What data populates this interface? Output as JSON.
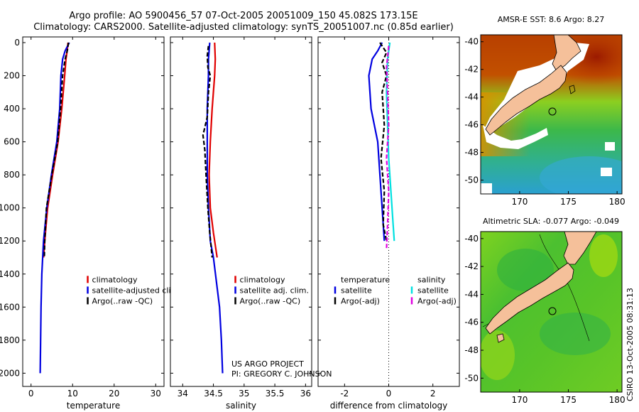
{
  "header": {
    "line1": "Argo profile: AO 5900456_57 07-Oct-2005 20051009_150 45.082S 173.15E",
    "line2": "Climatology: CARS2000. Satellite-adjusted climatology: synTS_20051007.nc (0.85d earlier)"
  },
  "chart_data": [
    {
      "id": "temperature",
      "type": "line",
      "xlabel": "temperature",
      "xlim": [
        -2,
        32
      ],
      "xticks": [
        0,
        10,
        20,
        30
      ],
      "ylim": [
        0,
        2080
      ],
      "yticks": [
        0,
        200,
        400,
        600,
        800,
        1000,
        1200,
        1400,
        1600,
        1800,
        2000
      ],
      "ylabel_ticks_shown": true,
      "legend": {
        "location": "lower-right",
        "entries": [
          {
            "label": "climatology",
            "color": "#e00000"
          },
          {
            "label": "satellite-adjusted climatology",
            "color": "#0000e0"
          },
          {
            "label": "Argo(..raw -QC)",
            "color": "#000000"
          }
        ]
      },
      "series": [
        {
          "name": "climatology",
          "color": "#e00000",
          "dash": "none",
          "points": [
            [
              8.9,
              0
            ],
            [
              8.7,
              50
            ],
            [
              8.4,
              100
            ],
            [
              8.1,
              200
            ],
            [
              7.4,
              400
            ],
            [
              6.5,
              600
            ],
            [
              5.2,
              800
            ],
            [
              4.0,
              1000
            ],
            [
              3.3,
              1200
            ],
            [
              3.0,
              1300
            ]
          ]
        },
        {
          "name": "satellite-adjusted climatology",
          "color": "#0000e0",
          "dash": "none",
          "points": [
            [
              9.2,
              0
            ],
            [
              8.2,
              50
            ],
            [
              7.6,
              100
            ],
            [
              7.2,
              200
            ],
            [
              6.9,
              400
            ],
            [
              6.2,
              600
            ],
            [
              4.9,
              800
            ],
            [
              3.8,
              1000
            ],
            [
              3.0,
              1200
            ],
            [
              2.6,
              1400
            ],
            [
              2.4,
              1600
            ],
            [
              2.3,
              1800
            ],
            [
              2.2,
              2000
            ]
          ]
        },
        {
          "name": "Argo(..raw -QC)",
          "color": "#000000",
          "dash": "6,3",
          "points": [
            [
              9.0,
              0
            ],
            [
              8.8,
              40
            ],
            [
              8.2,
              100
            ],
            [
              7.6,
              200
            ],
            [
              7.1,
              400
            ],
            [
              6.4,
              600
            ],
            [
              5.0,
              800
            ],
            [
              3.7,
              1000
            ],
            [
              3.3,
              1200
            ],
            [
              3.2,
              1300
            ]
          ]
        }
      ]
    },
    {
      "id": "salinity",
      "type": "line",
      "xlabel": "salinity",
      "xlim": [
        33.8,
        36.1
      ],
      "xticks": [
        34,
        34.5,
        35,
        35.5,
        36
      ],
      "ylim": [
        0,
        2080
      ],
      "yticks": [
        0,
        200,
        400,
        600,
        800,
        1000,
        1200,
        1400,
        1600,
        1800,
        2000
      ],
      "ylabel_ticks_shown": false,
      "legend": {
        "location": "lower-right",
        "entries": [
          {
            "label": "climatology",
            "color": "#e00000"
          },
          {
            "label": "satellite adj. clim.",
            "color": "#0000e0"
          },
          {
            "label": "Argo(..raw -QC)",
            "color": "#000000"
          }
        ]
      },
      "series": [
        {
          "name": "climatology",
          "color": "#e00000",
          "dash": "none",
          "points": [
            [
              34.52,
              0
            ],
            [
              34.53,
              100
            ],
            [
              34.52,
              200
            ],
            [
              34.48,
              400
            ],
            [
              34.45,
              600
            ],
            [
              34.43,
              800
            ],
            [
              34.45,
              1000
            ],
            [
              34.5,
              1150
            ],
            [
              34.56,
              1300
            ]
          ]
        },
        {
          "name": "satellite adj. clim.",
          "color": "#0000e0",
          "dash": "none",
          "points": [
            [
              34.44,
              0
            ],
            [
              34.42,
              100
            ],
            [
              34.42,
              200
            ],
            [
              34.4,
              400
            ],
            [
              34.4,
              600
            ],
            [
              34.4,
              800
            ],
            [
              34.42,
              1000
            ],
            [
              34.45,
              1200
            ],
            [
              34.5,
              1300
            ],
            [
              34.55,
              1450
            ],
            [
              34.6,
              1600
            ],
            [
              34.63,
              1800
            ],
            [
              34.65,
              2000
            ]
          ]
        },
        {
          "name": "Argo(..raw -QC)",
          "color": "#000000",
          "dash": "6,3",
          "points": [
            [
              34.42,
              20
            ],
            [
              34.4,
              80
            ],
            [
              34.41,
              150
            ],
            [
              34.45,
              200
            ],
            [
              34.42,
              300
            ],
            [
              34.4,
              450
            ],
            [
              34.33,
              560
            ],
            [
              34.36,
              650
            ],
            [
              34.38,
              800
            ],
            [
              34.41,
              1000
            ],
            [
              34.44,
              1150
            ],
            [
              34.48,
              1300
            ]
          ]
        }
      ]
    },
    {
      "id": "difference",
      "type": "line",
      "xlabel": "difference from climatology",
      "xlim": [
        -3.2,
        3.2
      ],
      "xticks": [
        -2,
        0,
        2
      ],
      "ylim": [
        0,
        2080
      ],
      "yticks": [
        0,
        200,
        400,
        600,
        800,
        1000,
        1200,
        1400,
        1600,
        1800,
        2000
      ],
      "ylabel_ticks_shown": false,
      "zero_line": true,
      "legend": {
        "location": "lower-center",
        "columns": [
          {
            "heading": "temperature",
            "entries": [
              {
                "label": "satellite",
                "color": "#0000e0"
              },
              {
                "label": "Argo(-adj)",
                "color": "#000000"
              }
            ]
          },
          {
            "heading": "salinity",
            "entries": [
              {
                "label": "satellite",
                "color": "#00e0e0"
              },
              {
                "label": "Argo(-adj)",
                "color": "#e000e0"
              }
            ]
          }
        ]
      },
      "series": [
        {
          "name": "temperature satellite",
          "color": "#0000e0",
          "dash": "none",
          "points": [
            [
              -0.3,
              0
            ],
            [
              -0.5,
              50
            ],
            [
              -0.75,
              100
            ],
            [
              -0.9,
              200
            ],
            [
              -0.8,
              400
            ],
            [
              -0.5,
              600
            ],
            [
              -0.4,
              800
            ],
            [
              -0.3,
              1000
            ],
            [
              -0.2,
              1200
            ]
          ]
        },
        {
          "name": "temperature Argo(-adj)",
          "color": "#000000",
          "dash": "6,3",
          "points": [
            [
              -0.4,
              0
            ],
            [
              -0.1,
              60
            ],
            [
              -0.3,
              120
            ],
            [
              -0.1,
              200
            ],
            [
              -0.3,
              300
            ],
            [
              -0.2,
              500
            ],
            [
              -0.35,
              700
            ],
            [
              -0.2,
              900
            ],
            [
              -0.25,
              1100
            ],
            [
              -0.1,
              1200
            ]
          ]
        },
        {
          "name": "salinity satellite",
          "color": "#00e0e0",
          "dash": "none",
          "points": [
            [
              0.05,
              0
            ],
            [
              -0.05,
              100
            ],
            [
              -0.1,
              300
            ],
            [
              -0.05,
              500
            ],
            [
              0.0,
              700
            ],
            [
              0.1,
              900
            ],
            [
              0.2,
              1100
            ],
            [
              0.25,
              1200
            ]
          ]
        },
        {
          "name": "salinity Argo(-adj)",
          "color": "#e000e0",
          "dash": "6,3",
          "points": [
            [
              0.0,
              20
            ],
            [
              -0.1,
              150
            ],
            [
              -0.05,
              300
            ],
            [
              0.0,
              500
            ],
            [
              -0.1,
              700
            ],
            [
              0.0,
              900
            ],
            [
              -0.05,
              1100
            ],
            [
              -0.1,
              1250
            ]
          ]
        }
      ]
    },
    {
      "id": "sst-map",
      "type": "heatmap",
      "title": "AMSR-E SST: 8.6 Argo: 8.27",
      "xlim": [
        166,
        180.5
      ],
      "ylim": [
        -51,
        -39.5
      ],
      "xticks": [
        170,
        175,
        180
      ],
      "yticks": [
        -40,
        -42,
        -44,
        -46,
        -48,
        -50
      ],
      "colormap": "jet",
      "argo_position": {
        "lon": 173.15,
        "lat": -45.082
      }
    },
    {
      "id": "sla-map",
      "type": "heatmap",
      "title": "Altimetric SLA: -0.077 Argo: -0.049",
      "xlim": [
        166,
        180.5
      ],
      "ylim": [
        -51,
        -39.5
      ],
      "xticks": [
        170,
        175,
        180
      ],
      "yticks": [
        -40,
        -42,
        -44,
        -46,
        -48,
        -50
      ],
      "colormap": "jet",
      "argo_position": {
        "lon": 173.15,
        "lat": -45.082
      }
    }
  ],
  "footer": {
    "project_line1": "US ARGO PROJECT",
    "project_line2": "PI: GREGORY C. JOHNSON",
    "stamp": "CSIRO 13-Oct-2005 08:31:13"
  },
  "colors": {
    "land": "#f5c09a",
    "coast": "#000000"
  }
}
